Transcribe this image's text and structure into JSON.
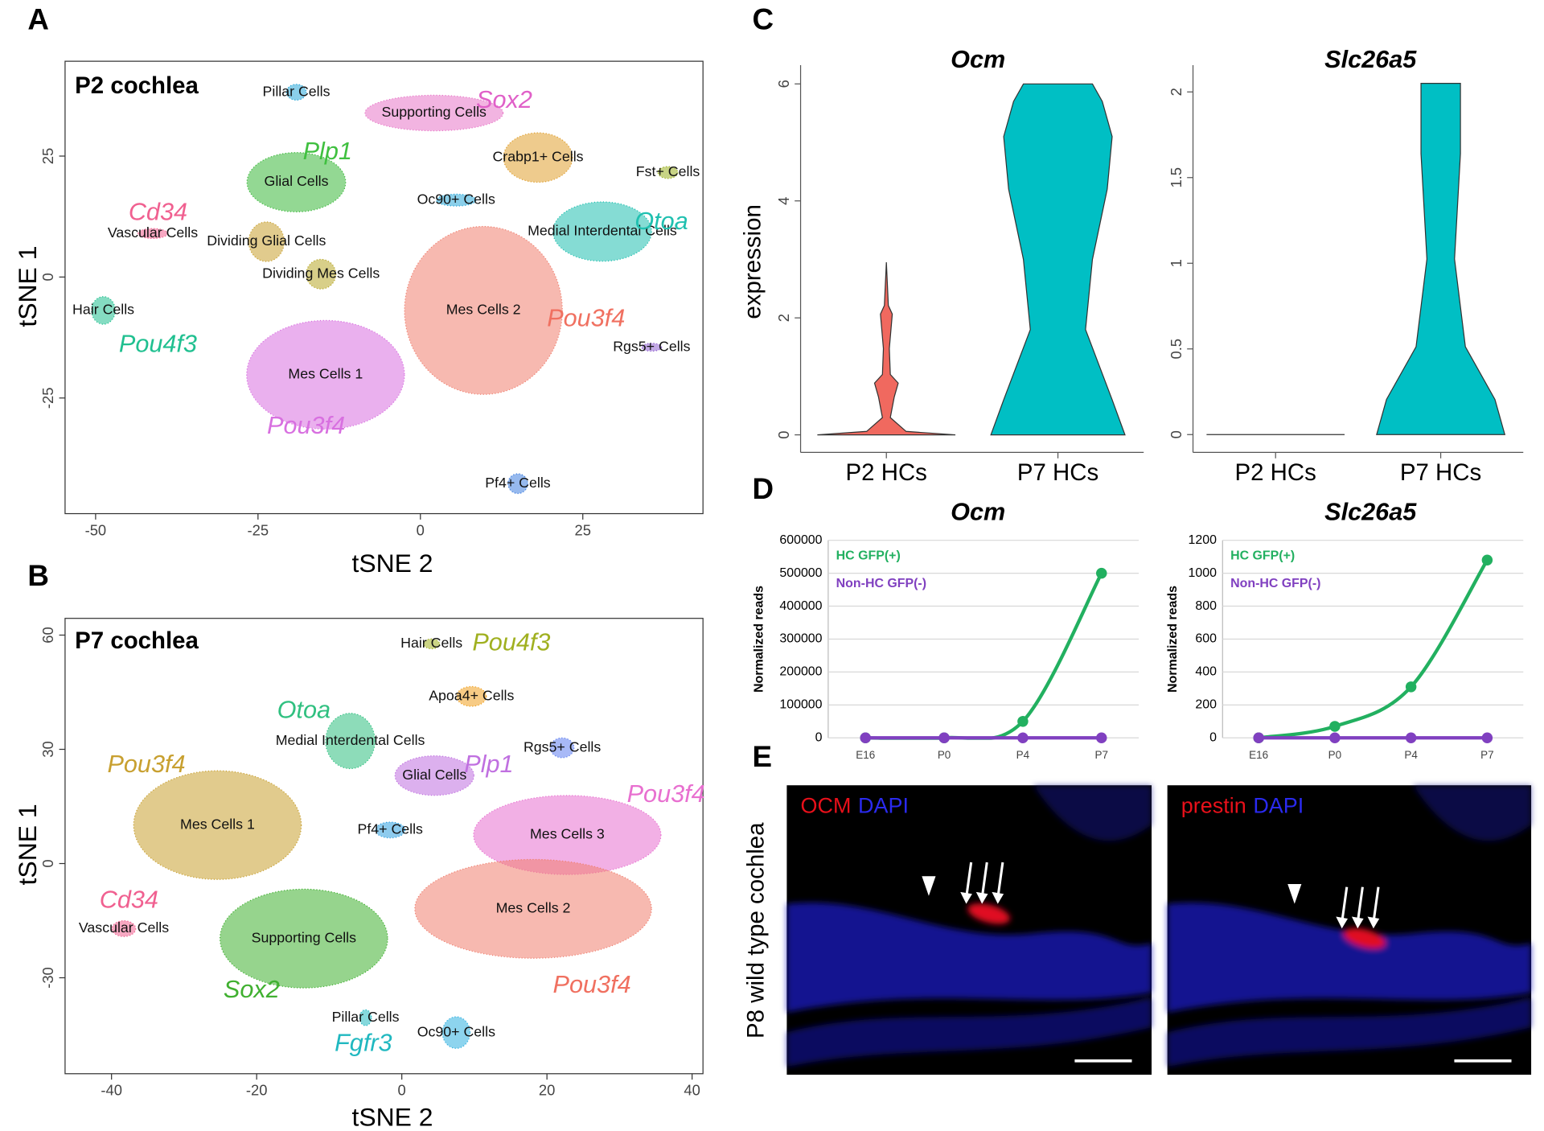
{
  "chart_data": [
    {
      "type": "scatter",
      "panel_label": "A",
      "title": "P2 cochlea",
      "xlabel": "tSNE 2",
      "ylabel": "tSNE 1",
      "xlim": [
        -54.7,
        43.5
      ],
      "ylim": [
        -48.9,
        44.6
      ],
      "xticks": [
        -50,
        -25,
        0,
        25
      ],
      "yticks": [
        -25,
        0,
        25
      ],
      "clusters": [
        {
          "name": "Pillar Cells",
          "color": "#2aa8d8",
          "x": -19.1,
          "y": 38.2
        },
        {
          "name": "Supporting Cells",
          "color": "#e877c8",
          "x": 2.1,
          "y": 33.9
        },
        {
          "name": "Crabp1+ Cells",
          "color": "#e0a030",
          "x": 18.1,
          "y": 24.7
        },
        {
          "name": "Fst+ Cells",
          "color": "#9ab020",
          "x": 38.1,
          "y": 21.6
        },
        {
          "name": "Glial Cells",
          "color": "#3ab83a",
          "x": -19.1,
          "y": 19.6
        },
        {
          "name": "Oc90+ Cells",
          "color": "#2aa8d8",
          "x": 5.5,
          "y": 15.9
        },
        {
          "name": "Medial Interdental Cells",
          "color": "#20c0b0",
          "x": 28,
          "y": 9.4
        },
        {
          "name": "Vascular Cells",
          "color": "#f06090",
          "x": -41.2,
          "y": 9.0
        },
        {
          "name": "Dividing Glial Cells",
          "color": "#c8a030",
          "x": -23.7,
          "y": 7.3
        },
        {
          "name": "Dividing Mes Cells",
          "color": "#b8a828",
          "x": -15.3,
          "y": 0.6
        },
        {
          "name": "Hair Cells",
          "color": "#20c090",
          "x": -48.8,
          "y": -6.9
        },
        {
          "name": "Mes Cells 2",
          "color": "#f08070",
          "x": 9.7,
          "y": -6.9
        },
        {
          "name": "Rgs5+ Cells",
          "color": "#9060d0",
          "x": 35.6,
          "y": -14.5
        },
        {
          "name": "Mes Cells 1",
          "color": "#d870e0",
          "x": -14.6,
          "y": -20.2
        },
        {
          "name": "Pf4+ Cells",
          "color": "#4080e0",
          "x": 15,
          "y": -42.7
        }
      ],
      "annotations": [
        {
          "text": "Sox2",
          "color": "#e060c8",
          "x": 12.9,
          "y": 36.3
        },
        {
          "text": "Plp1",
          "color": "#40c040",
          "x": -14.3,
          "y": 25.7
        },
        {
          "text": "Cd34",
          "color": "#f06090",
          "x": -40.4,
          "y": 13.1
        },
        {
          "text": "Otoa",
          "color": "#20c0b0",
          "x": 37.1,
          "y": 11.2
        },
        {
          "text": "Pou3f4",
          "color": "#f07060",
          "x": 25.5,
          "y": -8.8
        },
        {
          "text": "Pou4f3",
          "color": "#20c090",
          "x": -40.4,
          "y": -14.1
        },
        {
          "text": "Pou3f4",
          "color": "#d870e0",
          "x": -17.6,
          "y": -31
        }
      ]
    },
    {
      "type": "scatter",
      "panel_label": "B",
      "title": "P7 cochlea",
      "xlabel": "tSNE 2",
      "ylabel": "tSNE 1",
      "xlim": [
        -46.4,
        41.5
      ],
      "ylim": [
        -55.2,
        64.4
      ],
      "xticks": [
        -40,
        -20,
        0,
        20,
        40
      ],
      "yticks": [
        -30,
        0,
        30,
        60
      ],
      "clusters": [
        {
          "name": "Hair Cells",
          "color": "#a0b020",
          "x": 4.1,
          "y": 57.7
        },
        {
          "name": "Apoa4+ Cells",
          "color": "#f0a020",
          "x": 9.6,
          "y": 43.9
        },
        {
          "name": "Medial Interdental Cells",
          "color": "#30c080",
          "x": -7.1,
          "y": 32.2
        },
        {
          "name": "Rgs5+ Cells",
          "color": "#6080f0",
          "x": 22.1,
          "y": 30.4
        },
        {
          "name": "Glial Cells",
          "color": "#c070e0",
          "x": 4.5,
          "y": 23.1
        },
        {
          "name": "Mes Cells 1",
          "color": "#c8a030",
          "x": -25.4,
          "y": 10.1
        },
        {
          "name": "Pf4+ Cells",
          "color": "#30a0e0",
          "x": -1.6,
          "y": 8.8
        },
        {
          "name": "Mes Cells 3",
          "color": "#e870d0",
          "x": 22.8,
          "y": 7.5
        },
        {
          "name": "Mes Cells 2",
          "color": "#f08070",
          "x": 18.1,
          "y": -11.9
        },
        {
          "name": "Vascular Cells",
          "color": "#f06090",
          "x": -38.3,
          "y": -17.1
        },
        {
          "name": "Supporting Cells",
          "color": "#40b030",
          "x": -13.5,
          "y": -19.7
        },
        {
          "name": "Pillar Cells",
          "color": "#20b8c0",
          "x": -5,
          "y": -40.5
        },
        {
          "name": "Oc90+ Cells",
          "color": "#30b0e0",
          "x": 7.5,
          "y": -44.4
        }
      ],
      "annotations": [
        {
          "text": "Pou4f3",
          "color": "#a0b020",
          "x": 15.1,
          "y": 57.7
        },
        {
          "text": "Otoa",
          "color": "#30c080",
          "x": -13.5,
          "y": 40
        },
        {
          "text": "Plp1",
          "color": "#c070e0",
          "x": 12,
          "y": 25.7
        },
        {
          "text": "Pou3f4",
          "color": "#c8a030",
          "x": -35.2,
          "y": 25.7
        },
        {
          "text": "Pou3f4",
          "color": "#e870d0",
          "x": 36.4,
          "y": 17.9
        },
        {
          "text": "Cd34",
          "color": "#f06090",
          "x": -37.6,
          "y": -9.9
        },
        {
          "text": "Sox2",
          "color": "#40b030",
          "x": -20.7,
          "y": -33.5
        },
        {
          "text": "Pou3f4",
          "color": "#f07060",
          "x": 26.2,
          "y": -32.2
        },
        {
          "text": "Fgfr3",
          "color": "#20b8c0",
          "x": -5.3,
          "y": -47.5
        }
      ]
    },
    {
      "type": "violin",
      "panel_label": "C",
      "title": "Ocm",
      "ylabel": "expression",
      "categories": [
        "P2 HCs",
        "P7 HCs"
      ],
      "colors": [
        "#f0695f",
        "#00bfc4"
      ],
      "max": [
        2.95,
        6
      ],
      "ylim": [
        -0.3,
        6.32
      ],
      "yticks": [
        0,
        2,
        4,
        6
      ]
    },
    {
      "type": "violin",
      "title": "Slc26a5",
      "categories": [
        "P2 HCs",
        "P7 HCs"
      ],
      "colors": [
        "#f0695f",
        "#00bfc4"
      ],
      "max": [
        0,
        2.05
      ],
      "ylim": [
        -0.104,
        2.156
      ],
      "yticks": [
        0,
        0.5,
        1,
        1.5,
        2
      ]
    },
    {
      "type": "line",
      "panel_label": "D",
      "title": "Ocm",
      "ylabel": "Normalized reads",
      "categories": [
        "E16",
        "P0",
        "P4",
        "P7"
      ],
      "series": [
        {
          "name": "HC GFP(+)",
          "color": "#22b060",
          "values": [
            0,
            0,
            50000,
            500000
          ]
        },
        {
          "name": "Non-HC GFP(-)",
          "color": "#8040c0",
          "values": [
            0,
            0,
            0,
            0
          ]
        }
      ],
      "ylim": [
        0,
        600000
      ],
      "yticks": [
        0,
        100000,
        200000,
        300000,
        400000,
        500000,
        600000
      ],
      "grid": true
    },
    {
      "type": "line",
      "title": "Slc26a5",
      "ylabel": "Normalized reads",
      "categories": [
        "E16",
        "P0",
        "P4",
        "P7"
      ],
      "series": [
        {
          "name": "HC GFP(+)",
          "color": "#22b060",
          "values": [
            0,
            70,
            310,
            1080
          ]
        },
        {
          "name": "Non-HC GFP(-)",
          "color": "#8040c0",
          "values": [
            0,
            0,
            0,
            0
          ]
        }
      ],
      "ylim": [
        0,
        1200
      ],
      "yticks": [
        0,
        200,
        400,
        600,
        800,
        1000,
        1200
      ],
      "grid": true
    }
  ],
  "panel_e": {
    "panel_label": "E",
    "label": "P8 wild type cochlea",
    "images": [
      {
        "stains": [
          {
            "text": "OCM",
            "color": "#e8101a"
          },
          {
            "text": "DAPI",
            "color": "#2a2af0"
          }
        ]
      },
      {
        "stains": [
          {
            "text": "prestin",
            "color": "#e8101a"
          },
          {
            "text": "DAPI",
            "color": "#2a2af0"
          }
        ]
      }
    ]
  }
}
